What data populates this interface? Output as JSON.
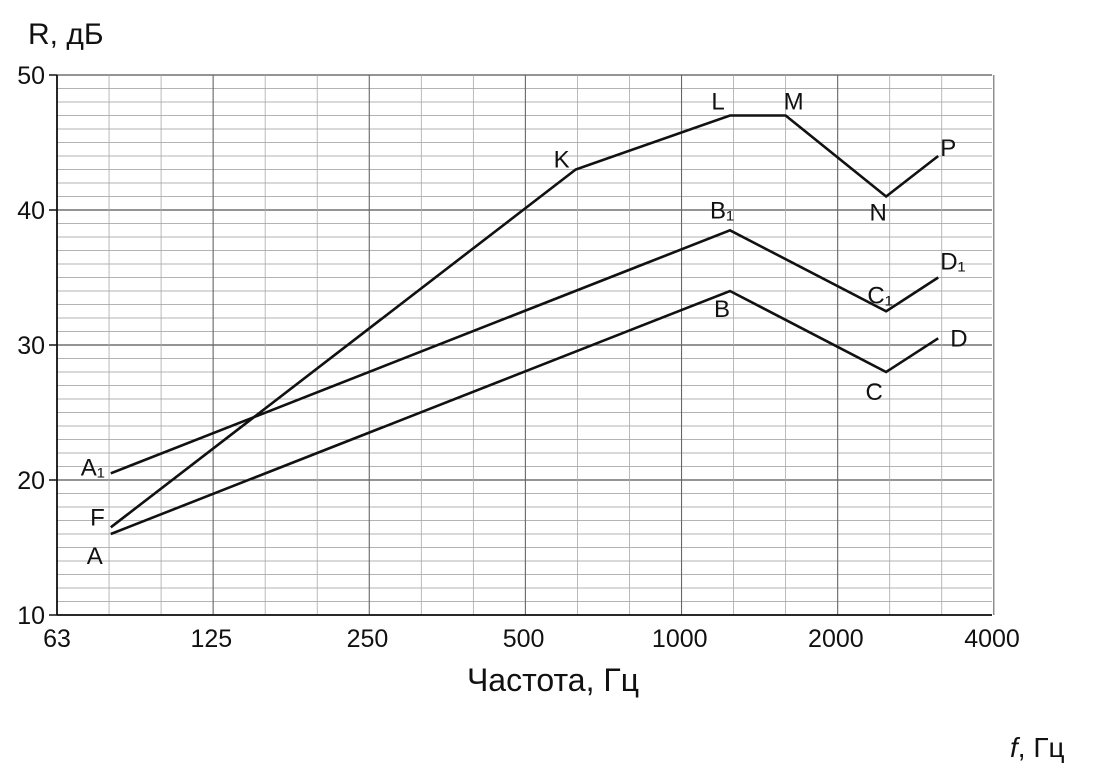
{
  "chart_data": {
    "type": "line",
    "xscale": "log2",
    "title": "",
    "xlabel": "Частота, Гц",
    "ylabel": "R, дБ",
    "xlabel_corner_italic": "f",
    "xlabel_corner_unit": ", Гц",
    "xticks": [
      63,
      125,
      250,
      500,
      1000,
      2000,
      4000
    ],
    "xtick_labels": [
      "63",
      "125",
      "250",
      "500",
      "1000",
      "2000",
      "4000"
    ],
    "yticks": [
      10,
      20,
      30,
      40,
      50
    ],
    "ytick_labels": [
      "10",
      "20",
      "30",
      "40",
      "50"
    ],
    "xlim": [
      63,
      4000
    ],
    "ylim": [
      10,
      50
    ],
    "grid": true,
    "series": [
      {
        "points": [
          {
            "x": 80,
            "y": 16,
            "label": "A"
          },
          {
            "x": 1250,
            "y": 34,
            "label": "B"
          },
          {
            "x": 2500,
            "y": 28,
            "label": "C"
          },
          {
            "x": 3150,
            "y": 30.5,
            "label": "D"
          }
        ]
      },
      {
        "points": [
          {
            "x": 80,
            "y": 20.5,
            "label": "A₁"
          },
          {
            "x": 1250,
            "y": 38.5,
            "label": "B₁"
          },
          {
            "x": 2500,
            "y": 32.5,
            "label": "C₁"
          },
          {
            "x": 3150,
            "y": 35,
            "label": "D₁"
          }
        ]
      },
      {
        "points": [
          {
            "x": 80,
            "y": 16.5,
            "label": "F"
          },
          {
            "x": 630,
            "y": 43,
            "label": "K"
          },
          {
            "x": 1250,
            "y": 47,
            "label": "L"
          },
          {
            "x": 1600,
            "y": 47,
            "label": "M"
          },
          {
            "x": 2500,
            "y": 41,
            "label": "N"
          },
          {
            "x": 3150,
            "y": 44,
            "label": "P"
          }
        ]
      }
    ]
  }
}
